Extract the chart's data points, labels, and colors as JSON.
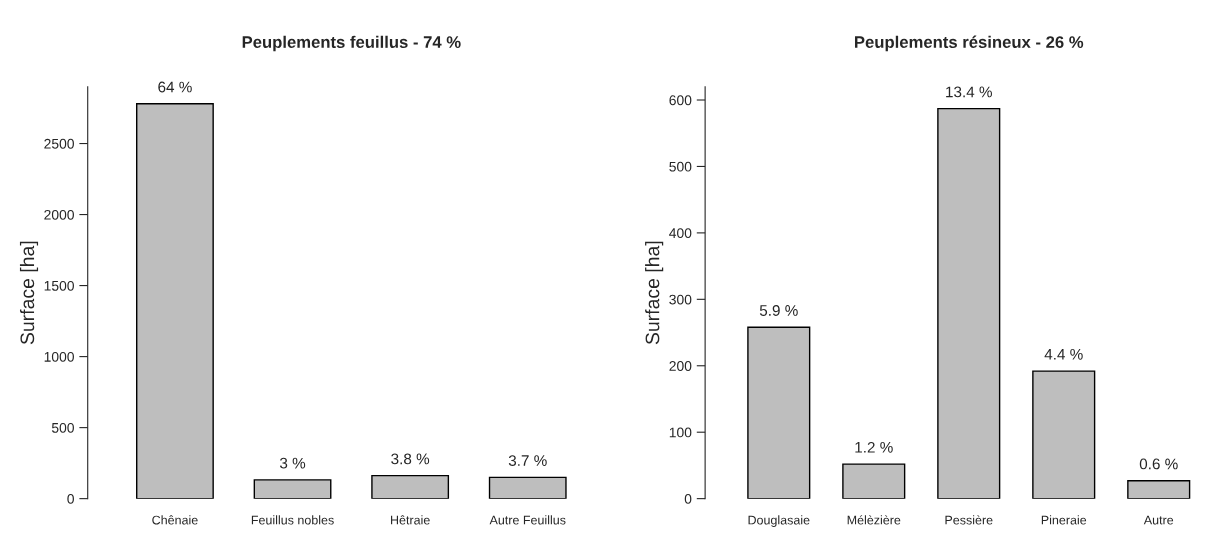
{
  "chart_data": [
    {
      "type": "bar",
      "title": "Peuplements feuillus - 74 %",
      "ylabel": "Surface [ha]",
      "categories": [
        "Chênaie",
        "Feuillus nobles",
        "Hêtraie",
        "Autre Feuillus"
      ],
      "series": [
        {
          "color": "#bebebe",
          "values": [
            2780,
            132,
            162,
            150
          ]
        }
      ],
      "value_labels": [
        "64 %",
        "3 %",
        "3.8 %",
        "3.7 %"
      ],
      "ylim": [
        0,
        2900
      ],
      "yticks": [
        0,
        500,
        1000,
        1500,
        2000,
        2500
      ],
      "grid": false,
      "legend": false
    },
    {
      "type": "bar",
      "title": "Peuplements résineux - 26 %",
      "ylabel": "Surface [ha]",
      "categories": [
        "Douglasaie",
        "Mélèzière",
        "Pessière",
        "Pineraie",
        "Autre"
      ],
      "series": [
        {
          "color": "#bebebe",
          "values": [
            258,
            52,
            587,
            192,
            27
          ]
        }
      ],
      "value_labels": [
        "5.9 %",
        "1.2 %",
        "13.4 %",
        "4.4 %",
        "0.6 %"
      ],
      "ylim": [
        0,
        620
      ],
      "yticks": [
        0,
        100,
        200,
        300,
        400,
        500,
        600
      ],
      "grid": false,
      "legend": false
    }
  ]
}
